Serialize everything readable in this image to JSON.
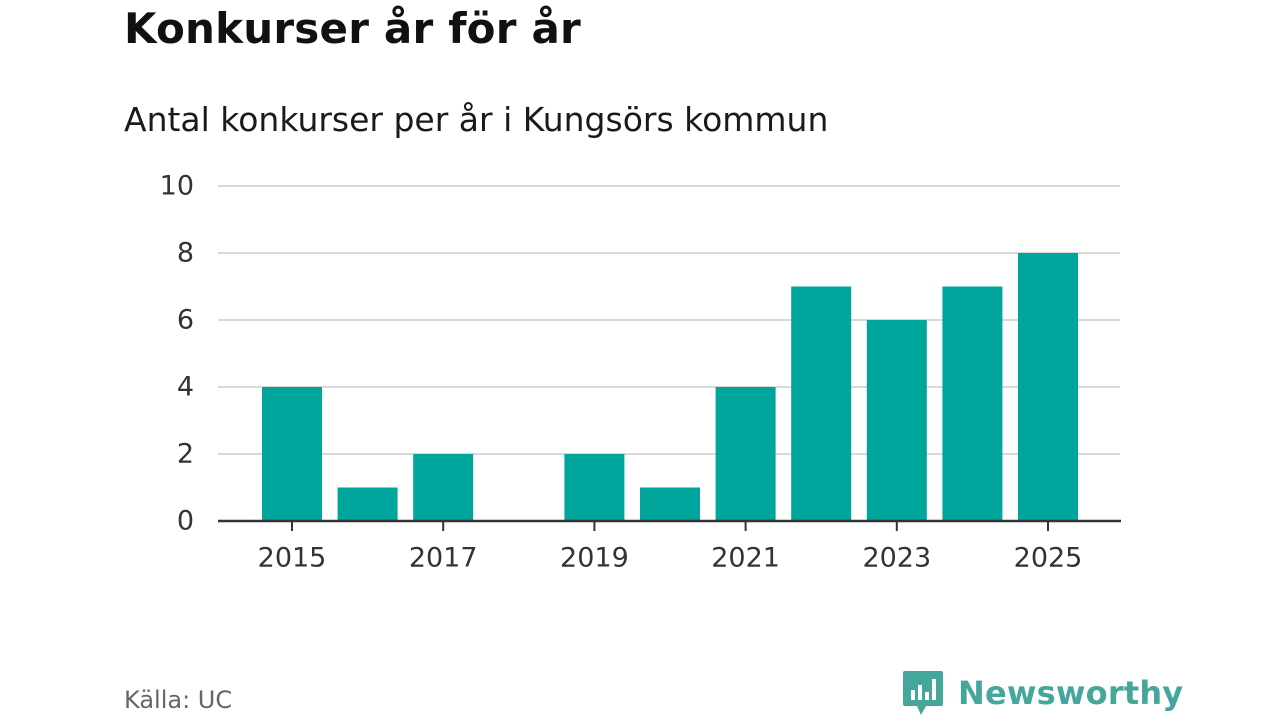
{
  "title": "Konkurser år för år",
  "subtitle": "Antal konkurser per år i Kungsörs kommun",
  "source": "Källa: UC",
  "brand": {
    "name": "Newsworthy",
    "icon": "newsworthy-logo-icon",
    "color": "#45a69c"
  },
  "colors": {
    "bar": "#00a59b",
    "grid": "#d9d9d9",
    "axis": "#333333"
  },
  "chart_data": {
    "type": "bar",
    "title": "Konkurser år för år",
    "subtitle": "Antal konkurser per år i Kungsörs kommun",
    "xlabel": "",
    "ylabel": "",
    "categories": [
      2015,
      2016,
      2017,
      2018,
      2019,
      2020,
      2021,
      2022,
      2023,
      2024,
      2025
    ],
    "values": [
      4,
      1,
      2,
      0,
      2,
      1,
      4,
      7,
      6,
      7,
      8
    ],
    "ylim": [
      0,
      10
    ],
    "yticks": [
      0,
      2,
      4,
      6,
      8,
      10
    ],
    "xticks": [
      2015,
      2017,
      2019,
      2021,
      2023,
      2025
    ],
    "grid": true,
    "legend": "none"
  }
}
